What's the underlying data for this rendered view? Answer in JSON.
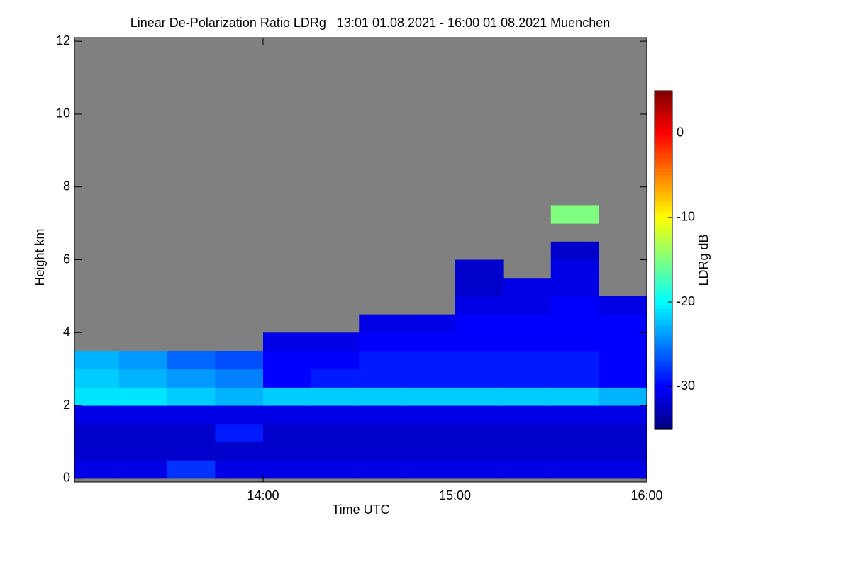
{
  "chart_data": {
    "type": "heatmap",
    "title": "Linear De-Polarization Ratio LDRg   13:01 01.08.2021 - 16:00 01.08.2021 Muenchen",
    "x_label": "Time UTC",
    "y_label": "Height km",
    "colorbar_label": "LDRg dB",
    "xlim": [
      13.0167,
      16.0
    ],
    "ylim": [
      -0.1,
      12.1
    ],
    "xticks": [
      {
        "value": 14,
        "label": "14:00"
      },
      {
        "value": 15,
        "label": "15:00"
      },
      {
        "value": 16,
        "label": "16:00"
      }
    ],
    "yticks": [
      0,
      2,
      4,
      6,
      8,
      10,
      12
    ],
    "clim": [
      -35,
      5
    ],
    "cticks": [
      0,
      -10,
      -20,
      -30
    ],
    "colormap": "jet",
    "nan_color": "#808080",
    "xbins": [
      13.0167,
      13.25,
      13.5,
      13.75,
      14.0,
      14.25,
      14.5,
      14.75,
      15.0,
      15.25,
      15.5,
      15.75,
      16.0
    ],
    "ybins": [
      0,
      0.5,
      1,
      1.5,
      2,
      2.5,
      3,
      3.5,
      4,
      4.5,
      5,
      5.5,
      6,
      6.5,
      7,
      7.5,
      8,
      8.5,
      9,
      9.5,
      10,
      10.5,
      11,
      11.5,
      12
    ],
    "z": [
      [
        -31,
        -31,
        -28,
        -31,
        -31,
        -31,
        -31,
        -31,
        -31,
        -31,
        -31,
        -31
      ],
      [
        -32,
        -32,
        -32,
        -32,
        -32,
        -32,
        -32,
        -32,
        -32,
        -32,
        -32,
        -32
      ],
      [
        -32,
        -32,
        -32,
        -29,
        -32,
        -32,
        -32,
        -32,
        -32,
        -32,
        -32,
        -32
      ],
      [
        -31,
        -31,
        -31,
        -31,
        -31,
        -31,
        -31,
        -31,
        -31,
        -31,
        -31,
        -31
      ],
      [
        -21,
        -21,
        -22,
        -23,
        -22,
        -22,
        -22,
        -22,
        -22,
        -22,
        -22,
        -23
      ],
      [
        -22,
        -23,
        -24,
        -25,
        -30,
        -29,
        -29,
        -29,
        -29,
        -29,
        -29,
        -30
      ],
      [
        -23,
        -24,
        -26,
        -27,
        -30,
        -30,
        -29,
        -29,
        -29,
        -29,
        -29,
        -30
      ],
      [
        null,
        null,
        null,
        null,
        -31,
        -31,
        -30,
        -30,
        -30,
        -30,
        -30,
        -30
      ],
      [
        null,
        null,
        null,
        null,
        null,
        null,
        -31,
        -31,
        -30,
        -30,
        -30,
        -30
      ],
      [
        null,
        null,
        null,
        null,
        null,
        null,
        null,
        null,
        -31,
        -31,
        -30,
        -31
      ],
      [
        null,
        null,
        null,
        null,
        null,
        null,
        null,
        null,
        -32,
        -31,
        -31,
        null
      ],
      [
        null,
        null,
        null,
        null,
        null,
        null,
        null,
        null,
        -32,
        null,
        -31,
        null
      ],
      [
        null,
        null,
        null,
        null,
        null,
        null,
        null,
        null,
        null,
        null,
        -32,
        null
      ],
      [
        null,
        null,
        null,
        null,
        null,
        null,
        null,
        null,
        null,
        null,
        null,
        null
      ],
      [
        null,
        null,
        null,
        null,
        null,
        null,
        null,
        null,
        null,
        null,
        -15,
        null
      ],
      [
        null,
        null,
        null,
        null,
        null,
        null,
        null,
        null,
        null,
        null,
        null,
        null
      ],
      [
        null,
        null,
        null,
        null,
        null,
        null,
        null,
        null,
        null,
        null,
        null,
        null
      ],
      [
        null,
        null,
        null,
        null,
        null,
        null,
        null,
        null,
        null,
        null,
        null,
        null
      ],
      [
        null,
        null,
        null,
        null,
        null,
        null,
        null,
        null,
        null,
        null,
        null,
        null
      ],
      [
        null,
        null,
        null,
        null,
        null,
        null,
        null,
        null,
        null,
        null,
        null,
        null
      ],
      [
        null,
        null,
        null,
        null,
        null,
        null,
        null,
        null,
        null,
        null,
        null,
        null
      ],
      [
        null,
        null,
        null,
        null,
        null,
        null,
        null,
        null,
        null,
        null,
        null,
        null
      ],
      [
        null,
        null,
        null,
        null,
        null,
        null,
        null,
        null,
        null,
        null,
        null,
        null
      ],
      [
        null,
        null,
        null,
        null,
        null,
        null,
        null,
        null,
        null,
        null,
        null,
        null
      ]
    ]
  }
}
